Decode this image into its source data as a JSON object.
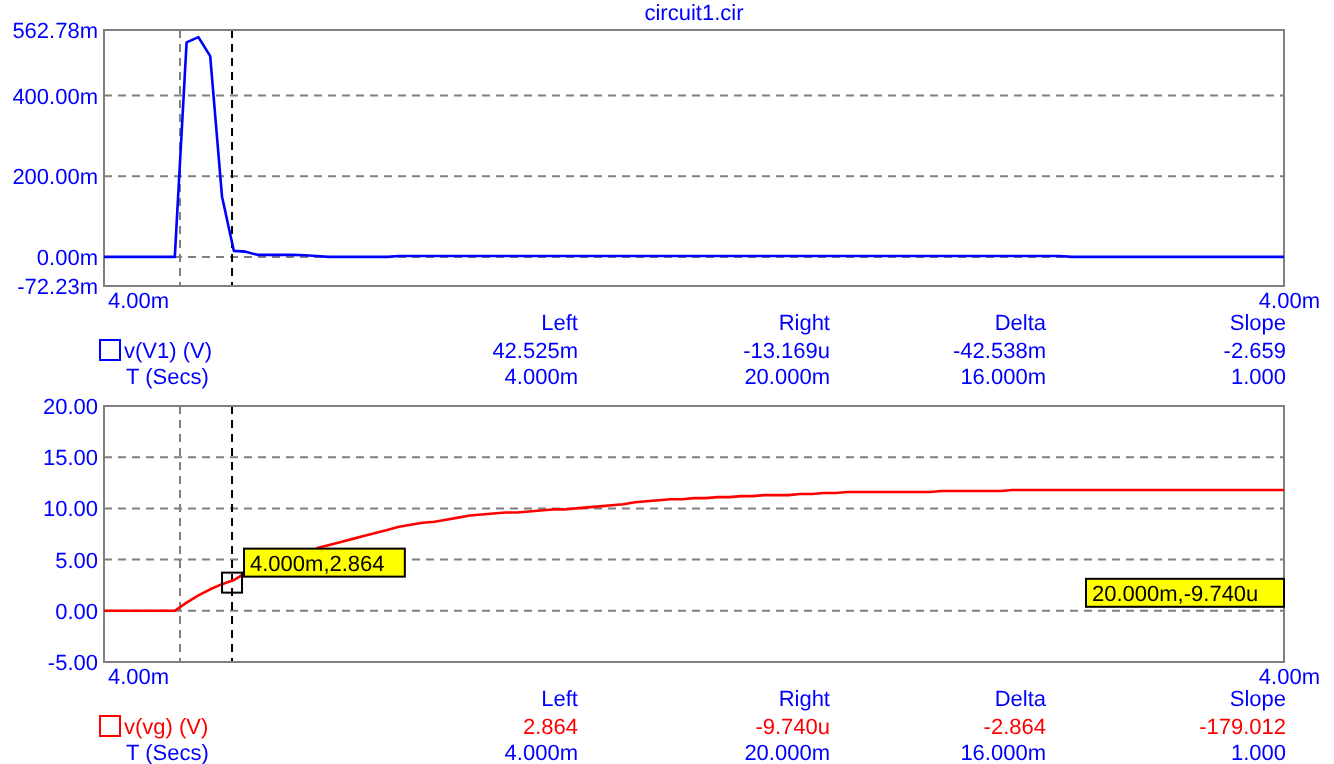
{
  "chart_data": [
    {
      "type": "line",
      "title": "circuit1.cir",
      "categories": [
        null,
        null,
        null,
        null,
        null,
        null,
        null,
        null,
        null,
        null,
        null,
        null,
        null,
        null,
        null,
        null,
        null,
        null,
        null,
        null,
        null,
        null,
        null,
        null,
        null,
        null,
        null,
        null,
        null,
        null,
        null,
        null,
        null,
        null,
        null,
        null,
        null,
        null,
        null,
        null,
        null,
        null,
        null,
        null,
        null,
        null,
        null,
        null,
        null,
        null,
        null,
        null,
        null,
        null,
        null,
        null,
        null,
        null,
        null,
        null,
        null,
        null,
        null,
        null,
        null,
        null,
        null,
        null,
        null,
        null,
        null,
        null,
        null,
        null,
        null,
        null,
        null,
        null,
        null,
        null,
        null,
        null,
        null,
        null,
        null,
        null,
        null,
        null,
        null,
        null,
        null,
        null,
        null,
        null,
        null,
        null,
        null,
        null,
        null,
        null,
        null
      ],
      "ylim": [
        -72.23,
        562.78
      ],
      "yticks": [
        {
          "value": -72.23,
          "label": "-72.23m"
        },
        {
          "value": 0,
          "label": "0.00m"
        },
        {
          "value": 200,
          "label": "200.00m"
        },
        {
          "value": 400,
          "label": "400.00m"
        },
        {
          "value": 562.78,
          "label": "562.78m"
        }
      ],
      "grid": "y",
      "line_style": "solid",
      "legend": "bottom left",
      "series": [
        {
          "name": "v(V1) (V)",
          "color": "#0000ff",
          "values": [
            0,
            0,
            0,
            0,
            0,
            0,
            0,
            532,
            545,
            498,
            150,
            15,
            13,
            5,
            5,
            5,
            5,
            4,
            2,
            0,
            0,
            0,
            0,
            0,
            0,
            2,
            2,
            2,
            2,
            2,
            2,
            2,
            2,
            2,
            2,
            2,
            2,
            2,
            2,
            2,
            2,
            2,
            2,
            2,
            2,
            2,
            2,
            2,
            2,
            2,
            2,
            2,
            2,
            2,
            2,
            2,
            2,
            2,
            2,
            2,
            2,
            2,
            2,
            2,
            2,
            2,
            2,
            2,
            2,
            2,
            2,
            2,
            2,
            2,
            2,
            2,
            2,
            2,
            2,
            2,
            2,
            2,
            0,
            0,
            0,
            0,
            0,
            0,
            0,
            0,
            0,
            0,
            0,
            0,
            0,
            0,
            0,
            0,
            0,
            0,
            0
          ]
        }
      ],
      "annotations": [
        "Left",
        "Right",
        "Delta",
        "Slope",
        "42.525m",
        "-13.169u",
        "-42.538m",
        "-2.659",
        "T (Secs)",
        "4.000m",
        "20.000m",
        "16.000m",
        "1.000",
        "4.00m",
        "4.00m"
      ]
    },
    {
      "type": "line",
      "categories": [
        null,
        null,
        null,
        null,
        null,
        null,
        null,
        null,
        null,
        null,
        null,
        null,
        null,
        null,
        null,
        null,
        null,
        null,
        null,
        null,
        null,
        null,
        null,
        null,
        null,
        null,
        null,
        null,
        null,
        null,
        null,
        null,
        null,
        null,
        null,
        null,
        null,
        null,
        null,
        null,
        null,
        null,
        null,
        null,
        null,
        null,
        null,
        null,
        null,
        null,
        null,
        null,
        null,
        null,
        null,
        null,
        null,
        null,
        null,
        null,
        null,
        null,
        null,
        null,
        null,
        null,
        null,
        null,
        null,
        null,
        null,
        null,
        null,
        null,
        null,
        null,
        null,
        null,
        null,
        null,
        null,
        null,
        null,
        null,
        null,
        null,
        null,
        null,
        null,
        null,
        null,
        null,
        null,
        null,
        null,
        null,
        null,
        null,
        null,
        null,
        null
      ],
      "ylim": [
        -5,
        20
      ],
      "yticks": [
        {
          "value": -5,
          "label": "-5.00"
        },
        {
          "value": 0,
          "label": "0.00"
        },
        {
          "value": 5,
          "label": "5.00"
        },
        {
          "value": 10,
          "label": "10.00"
        },
        {
          "value": 15,
          "label": "15.00"
        },
        {
          "value": 20,
          "label": "20.00"
        }
      ],
      "grid": "y",
      "line_style": "solid",
      "legend": "bottom left",
      "series": [
        {
          "name": "v(vg) (V)",
          "color": "#ff0000",
          "values": [
            0,
            0,
            0,
            0,
            0,
            0,
            0,
            0.8,
            1.5,
            2.1,
            2.6,
            3.0,
            3.7,
            null,
            null,
            null,
            null,
            null,
            6.1,
            6.4,
            6.7,
            7.0,
            7.3,
            7.6,
            7.9,
            8.2,
            8.4,
            8.6,
            8.7,
            8.9,
            9.1,
            9.3,
            9.4,
            9.5,
            9.6,
            9.6,
            9.7,
            9.8,
            9.9,
            9.9,
            10.0,
            10.1,
            10.2,
            10.3,
            10.4,
            10.6,
            10.7,
            10.8,
            10.9,
            10.9,
            11.0,
            11.0,
            11.1,
            11.1,
            11.2,
            11.2,
            11.3,
            11.3,
            11.3,
            11.4,
            11.4,
            11.5,
            11.5,
            11.6,
            11.6,
            11.6,
            11.6,
            11.6,
            11.6,
            11.6,
            11.6,
            11.7,
            11.7,
            11.7,
            11.7,
            11.7,
            11.7,
            11.8,
            11.8,
            11.8,
            11.8,
            11.8,
            11.8,
            11.8,
            11.8,
            11.8,
            11.8,
            11.8,
            11.8,
            11.8,
            11.8,
            11.8,
            11.8,
            11.8,
            11.8,
            11.8,
            11.8,
            11.8,
            11.8,
            11.8,
            11.8
          ]
        }
      ],
      "annotations": [
        "Left",
        "Right",
        "Delta",
        "Slope",
        "2.864",
        "-9.740u",
        "-2.864",
        "-179.012",
        "T (Secs)",
        "4.000m",
        "20.000m",
        "16.000m",
        "1.000",
        "4.00m",
        "4.00m",
        "4.000m,2.864",
        "20.000m,-9.740u"
      ]
    }
  ]
}
